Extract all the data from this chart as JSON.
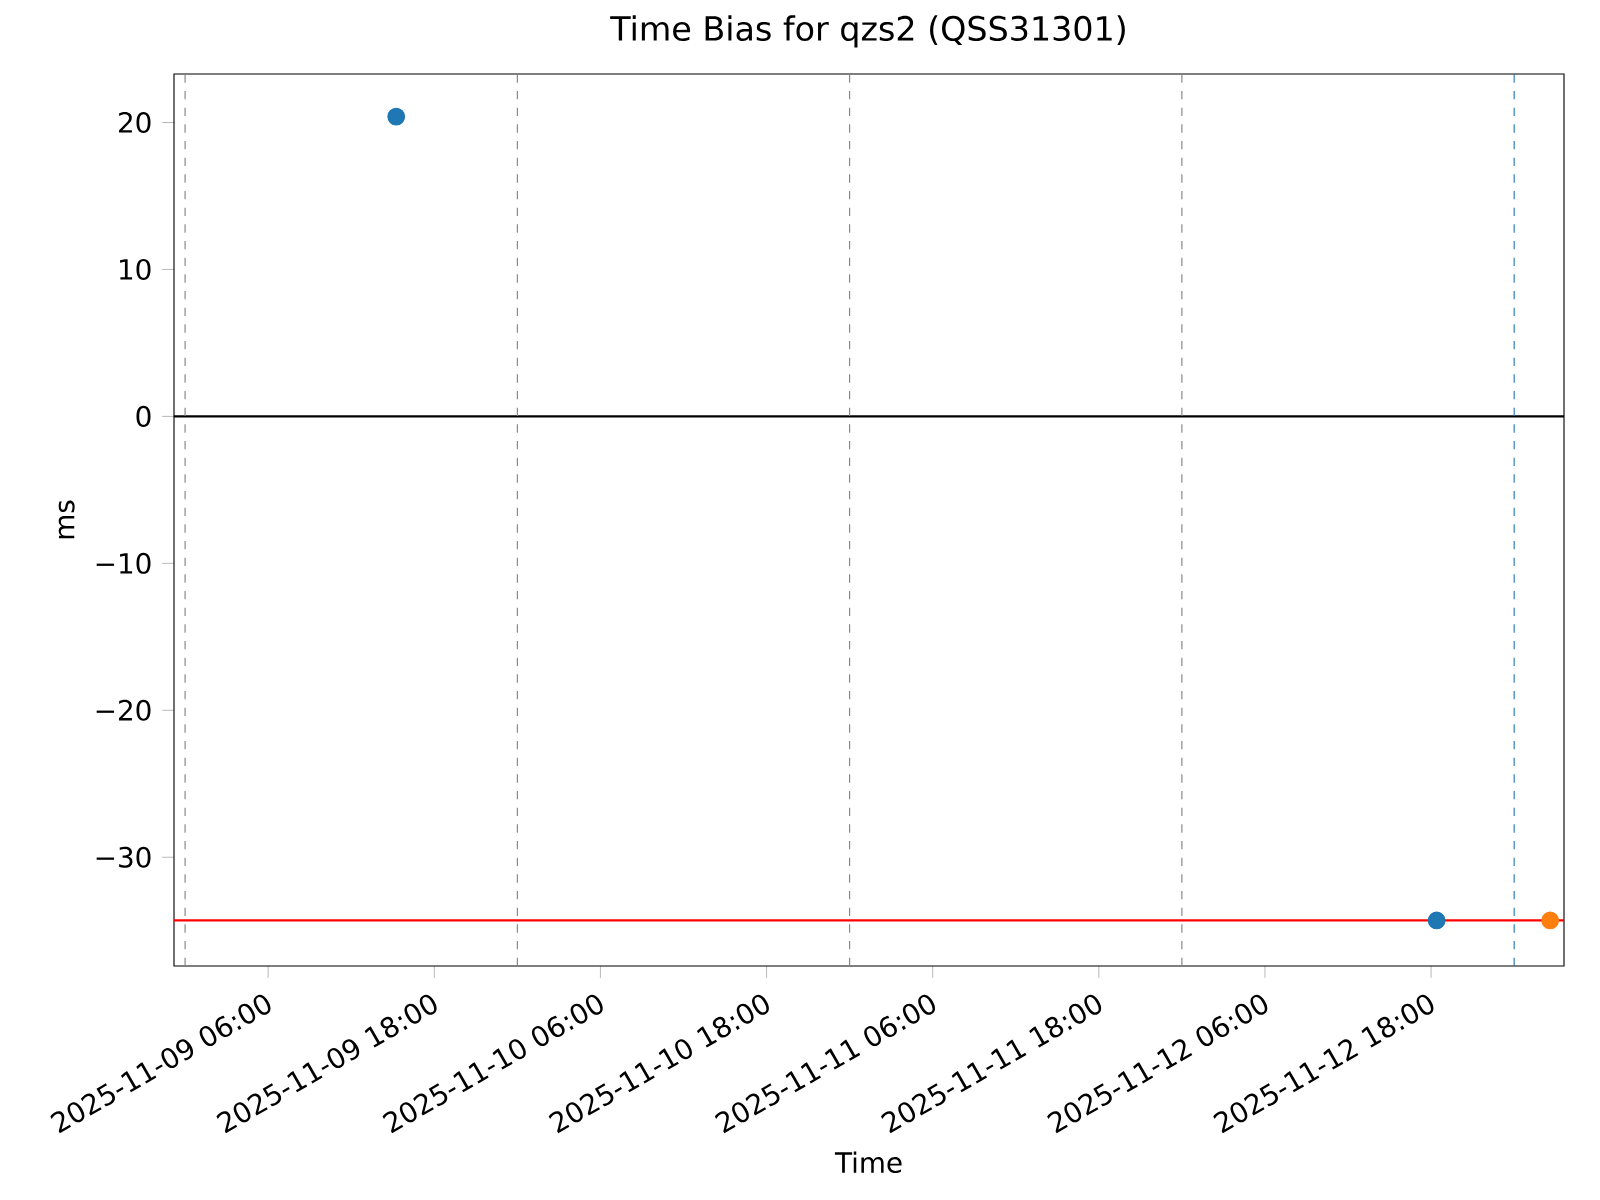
{
  "chart_data": {
    "type": "scatter",
    "title": "Time Bias for qzs2 (QSS31301)",
    "xlabel": "Time",
    "ylabel": "ms",
    "series": [
      {
        "color": "#1f77b4",
        "x": [
          "2025-11-09T15:15",
          "2025-11-12T18:24"
        ],
        "values": [
          20.4,
          -34.3
        ]
      },
      {
        "color": "#ff7f0e",
        "x": [
          "2025-11-13T02:36"
        ],
        "values": [
          -34.3
        ]
      }
    ],
    "marker": "circle",
    "xlim": [
      "2025-11-08T23:12",
      "2025-11-13T03:36"
    ],
    "ylim": [
      -37.4,
      23.3
    ],
    "yticks": [
      {
        "value": -30,
        "label": "−30"
      },
      {
        "value": -20,
        "label": "−20"
      },
      {
        "value": -10,
        "label": "−10"
      },
      0,
      10,
      20
    ],
    "xticks": [
      {
        "value": "2025-11-09T06:00",
        "label": "2025-11-09 06:00"
      },
      {
        "value": "2025-11-09T18:00",
        "label": "2025-11-09 18:00"
      },
      {
        "value": "2025-11-10T06:00",
        "label": "2025-11-10 06:00"
      },
      {
        "value": "2025-11-10T18:00",
        "label": "2025-11-10 18:00"
      },
      {
        "value": "2025-11-11T06:00",
        "label": "2025-11-11 06:00"
      },
      {
        "value": "2025-11-11T18:00",
        "label": "2025-11-11 18:00"
      },
      {
        "value": "2025-11-12T06:00",
        "label": "2025-11-12 06:00"
      },
      {
        "value": "2025-11-12T18:00",
        "label": "2025-11-12 18:00"
      }
    ],
    "ref_lines": [
      {
        "axis": "y",
        "value": -34.3,
        "color": "#ff0000",
        "line_style": "solid"
      },
      {
        "axis": "y",
        "value": 0,
        "color": "#000000",
        "line_style": "solid"
      },
      {
        "axis": "x",
        "value": "2025-11-09T00:00",
        "color": "#808080",
        "line_style": "dashed"
      },
      {
        "axis": "x",
        "value": "2025-11-10T00:00",
        "color": "#808080",
        "line_style": "dashed"
      },
      {
        "axis": "x",
        "value": "2025-11-11T00:00",
        "color": "#808080",
        "line_style": "dashed"
      },
      {
        "axis": "x",
        "value": "2025-11-12T00:00",
        "color": "#808080",
        "line_style": "dashed"
      },
      {
        "axis": "x",
        "value": "2025-11-13T00:00",
        "color": "#1f77b4",
        "line_style": "dashed"
      }
    ]
  }
}
